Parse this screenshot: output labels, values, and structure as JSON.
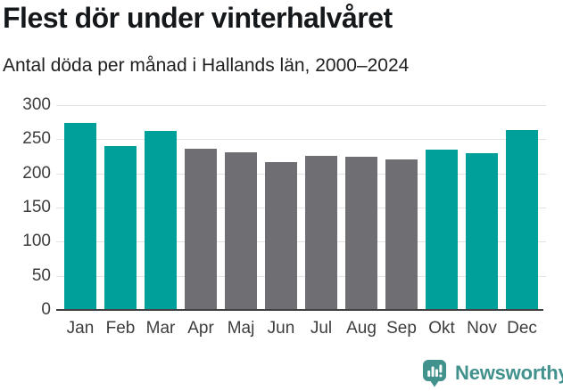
{
  "header": {
    "title": "Flest dör under vinterhalvåret",
    "subtitle": "Antal döda per månad i Hallands län, 2000–2024"
  },
  "chart_data": {
    "type": "bar",
    "title": "Flest dör under vinterhalvåret",
    "subtitle": "Antal döda per månad i Hallands län, 2000–2024",
    "categories": [
      "Jan",
      "Feb",
      "Mar",
      "Apr",
      "Maj",
      "Jun",
      "Jul",
      "Aug",
      "Sep",
      "Okt",
      "Nov",
      "Dec"
    ],
    "values": [
      274,
      240,
      262,
      236,
      231,
      216,
      226,
      225,
      221,
      235,
      230,
      263
    ],
    "highlighted": [
      true,
      true,
      true,
      false,
      false,
      false,
      false,
      false,
      false,
      true,
      true,
      true
    ],
    "xlabel": "",
    "ylabel": "",
    "ylim": [
      0,
      300
    ],
    "yticks": [
      0,
      50,
      100,
      150,
      200,
      250,
      300
    ],
    "grid": "horizontal",
    "legend": "none",
    "colors": {
      "highlight": "#00a09a",
      "default": "#6e6e73"
    }
  },
  "colors": {
    "background": "#ffffff",
    "grid": "#e3e3e3",
    "axis": "#404040",
    "title_text": "#15181a",
    "tick_text": "#3d3d3d"
  },
  "footer": {
    "brand": "Newsworthy",
    "brand_color": "#41918d",
    "logo_icon": "speech-bubble-bar-chart-exclamation"
  }
}
